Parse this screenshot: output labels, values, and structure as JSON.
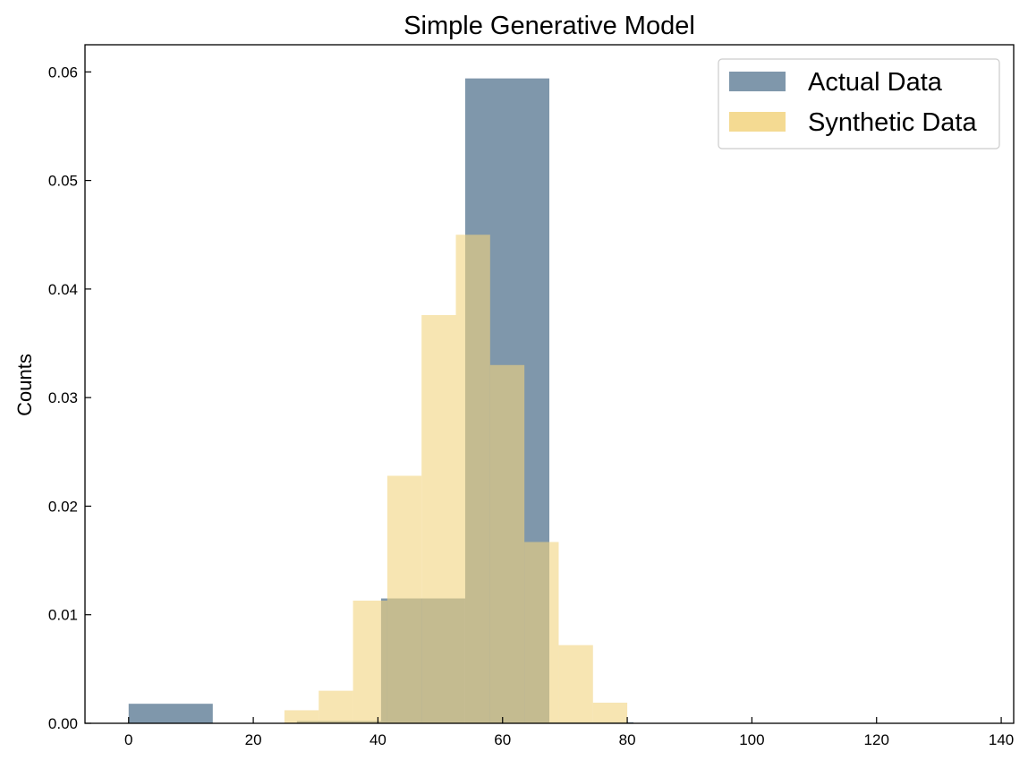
{
  "chart_data": {
    "type": "bar",
    "title": "Simple Generative Model",
    "xlabel": "",
    "ylabel": "Counts",
    "xlim": [
      -7,
      142
    ],
    "ylim": [
      0,
      0.0625
    ],
    "xticks": [
      0,
      20,
      40,
      60,
      80,
      100,
      120,
      140
    ],
    "yticks": [
      0.0,
      0.01,
      0.02,
      0.03,
      0.04,
      0.05,
      0.06
    ],
    "ytick_labels": [
      "0.00",
      "0.01",
      "0.02",
      "0.03",
      "0.04",
      "0.05",
      "0.06"
    ],
    "legend": {
      "position": "top-right"
    },
    "series": [
      {
        "name": "Actual Data",
        "color": "#7f97ab",
        "bins": [
          {
            "x0": 0,
            "x1": 13.5,
            "value": 0.0018
          },
          {
            "x0": 13.5,
            "x1": 27,
            "value": 0.0
          },
          {
            "x0": 27,
            "x1": 40.5,
            "value": 0.0002
          },
          {
            "x0": 40.5,
            "x1": 54,
            "value": 0.0115
          },
          {
            "x0": 54,
            "x1": 67.5,
            "value": 0.0594
          },
          {
            "x0": 67.5,
            "x1": 81,
            "value": 0.0001
          },
          {
            "x0": 81,
            "x1": 94.5,
            "value": 0.0
          },
          {
            "x0": 94.5,
            "x1": 108,
            "value": 0.0
          },
          {
            "x0": 108,
            "x1": 121.5,
            "value": 0.0
          },
          {
            "x0": 121.5,
            "x1": 135,
            "value": 0.0
          }
        ]
      },
      {
        "name": "Synthetic Data",
        "color": "#f2d37f",
        "bins": [
          {
            "x0": 25,
            "x1": 30.5,
            "value": 0.0012
          },
          {
            "x0": 30.5,
            "x1": 36,
            "value": 0.003
          },
          {
            "x0": 36,
            "x1": 41.5,
            "value": 0.0113
          },
          {
            "x0": 41.5,
            "x1": 47,
            "value": 0.0228
          },
          {
            "x0": 47,
            "x1": 52.5,
            "value": 0.0376
          },
          {
            "x0": 52.5,
            "x1": 58,
            "value": 0.045
          },
          {
            "x0": 58,
            "x1": 63.5,
            "value": 0.033
          },
          {
            "x0": 63.5,
            "x1": 69,
            "value": 0.0167
          },
          {
            "x0": 69,
            "x1": 74.5,
            "value": 0.0072
          },
          {
            "x0": 74.5,
            "x1": 80,
            "value": 0.0019
          }
        ]
      }
    ]
  }
}
